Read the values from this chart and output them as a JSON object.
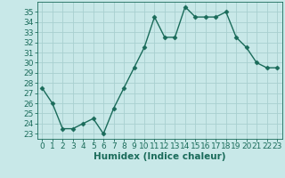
{
  "x": [
    0,
    1,
    2,
    3,
    4,
    5,
    6,
    7,
    8,
    9,
    10,
    11,
    12,
    13,
    14,
    15,
    16,
    17,
    18,
    19,
    20,
    21,
    22,
    23
  ],
  "y": [
    27.5,
    26.0,
    23.5,
    23.5,
    24.0,
    24.5,
    23.0,
    25.5,
    27.5,
    29.5,
    31.5,
    34.5,
    32.5,
    32.5,
    35.5,
    34.5,
    34.5,
    34.5,
    35.0,
    32.5,
    31.5,
    30.0,
    29.5,
    29.5
  ],
  "line_color": "#1a6b5a",
  "marker": "D",
  "marker_size": 2.5,
  "bg_color": "#c8e8e8",
  "grid_color": "#a8d0d0",
  "tick_color": "#1a6b5a",
  "xlabel": "Humidex (Indice chaleur)",
  "ylim": [
    22.5,
    36.0
  ],
  "xlim": [
    -0.5,
    23.5
  ],
  "yticks": [
    23,
    24,
    25,
    26,
    27,
    28,
    29,
    30,
    31,
    32,
    33,
    34,
    35
  ],
  "xticks": [
    0,
    1,
    2,
    3,
    4,
    5,
    6,
    7,
    8,
    9,
    10,
    11,
    12,
    13,
    14,
    15,
    16,
    17,
    18,
    19,
    20,
    21,
    22,
    23
  ],
  "xlabel_fontsize": 7.5,
  "tick_fontsize": 6.5
}
